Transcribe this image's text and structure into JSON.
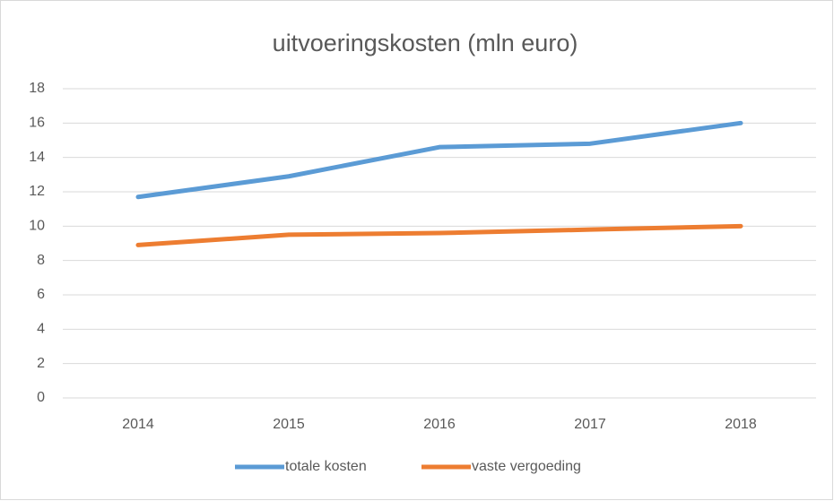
{
  "chart_data": {
    "type": "line",
    "title": "uitvoeringskosten (mln euro)",
    "categories": [
      "2014",
      "2015",
      "2016",
      "2017",
      "2018"
    ],
    "series": [
      {
        "name": "totale kosten",
        "color": "#5b9bd5",
        "values": [
          11.7,
          12.9,
          14.6,
          14.8,
          16.0
        ]
      },
      {
        "name": "vaste vergoeding",
        "color": "#ed7d31",
        "values": [
          8.9,
          9.5,
          9.6,
          9.8,
          10.0
        ]
      }
    ],
    "ylim": [
      0,
      18
    ],
    "yticks": [
      0,
      2,
      4,
      6,
      8,
      10,
      12,
      14,
      16,
      18
    ],
    "grid": true,
    "legend": "bottom"
  }
}
